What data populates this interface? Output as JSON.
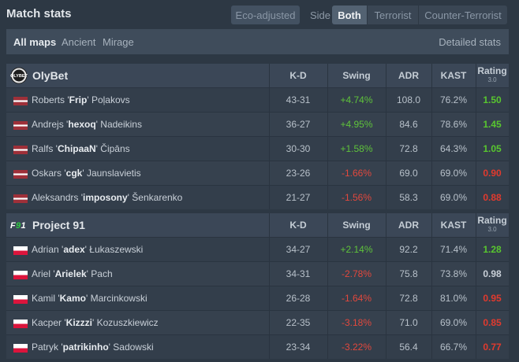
{
  "header": {
    "title": "Match stats",
    "eco_adjusted": "Eco-adjusted",
    "side_label": "Side",
    "side_options": [
      "Both",
      "Terrorist",
      "Counter-Terrorist"
    ],
    "side_selected": "Both"
  },
  "maps": {
    "items": [
      "All maps",
      "Ancient",
      "Mirage"
    ],
    "selected": "All maps",
    "detailed_link": "Detailed stats"
  },
  "columns": {
    "kd": "K-D",
    "swing": "Swing",
    "adr": "ADR",
    "kast": "KAST",
    "rating": "Rating",
    "rating_version": "3.0"
  },
  "colors": {
    "positive": "#5fc33b",
    "negative": "#e2483d",
    "rating_good": "#58c62f",
    "rating_bad": "#e13a2e"
  },
  "teams": [
    {
      "name": "OlyBet",
      "logo_icon": "olybet-logo",
      "flag": "latvia-flag",
      "players": [
        {
          "first": "Roberts",
          "nick": "Frip",
          "last": "Poļakovs",
          "kd": "43-31",
          "swing": "+4.74%",
          "adr": "108.0",
          "kast": "76.2%",
          "rating": "1.50"
        },
        {
          "first": "Andrejs",
          "nick": "hexoq",
          "last": "Nadeikins",
          "kd": "36-27",
          "swing": "+4.95%",
          "adr": "84.6",
          "kast": "78.6%",
          "rating": "1.45"
        },
        {
          "first": "Ralfs",
          "nick": "ChipaaN",
          "last": "Čipāns",
          "kd": "30-30",
          "swing": "+1.58%",
          "adr": "72.8",
          "kast": "64.3%",
          "rating": "1.05"
        },
        {
          "first": "Oskars",
          "nick": "cgk",
          "last": "Jaunslavietis",
          "kd": "23-26",
          "swing": "-1.66%",
          "adr": "69.0",
          "kast": "69.0%",
          "rating": "0.90"
        },
        {
          "first": "Aleksandrs",
          "nick": "imposony",
          "last": "Šenkarenko",
          "kd": "21-27",
          "swing": "-1.56%",
          "adr": "58.3",
          "kast": "69.0%",
          "rating": "0.88"
        }
      ]
    },
    {
      "name": "Project 91",
      "logo_icon": "project91-logo",
      "flag": "poland-flag",
      "players": [
        {
          "first": "Adrian",
          "nick": "adex",
          "last": "Łukaszewski",
          "kd": "34-27",
          "swing": "+2.14%",
          "adr": "92.2",
          "kast": "71.4%",
          "rating": "1.28"
        },
        {
          "first": "Ariel",
          "nick": "Arielek",
          "last": "Pach",
          "kd": "34-31",
          "swing": "-2.78%",
          "adr": "75.8",
          "kast": "73.8%",
          "rating": "0.98"
        },
        {
          "first": "Kamil",
          "nick": "Kamo",
          "last": "Marcinkowski",
          "kd": "26-28",
          "swing": "-1.64%",
          "adr": "72.8",
          "kast": "81.0%",
          "rating": "0.95"
        },
        {
          "first": "Kacper",
          "nick": "Kizzzi",
          "last": "Kozuszkiewicz",
          "kd": "22-35",
          "swing": "-3.18%",
          "adr": "71.0",
          "kast": "69.0%",
          "rating": "0.85"
        },
        {
          "first": "Patryk",
          "nick": "patrikinho",
          "last": "Sadowski",
          "kd": "23-34",
          "swing": "-3.22%",
          "adr": "56.4",
          "kast": "66.7%",
          "rating": "0.77"
        }
      ]
    }
  ]
}
